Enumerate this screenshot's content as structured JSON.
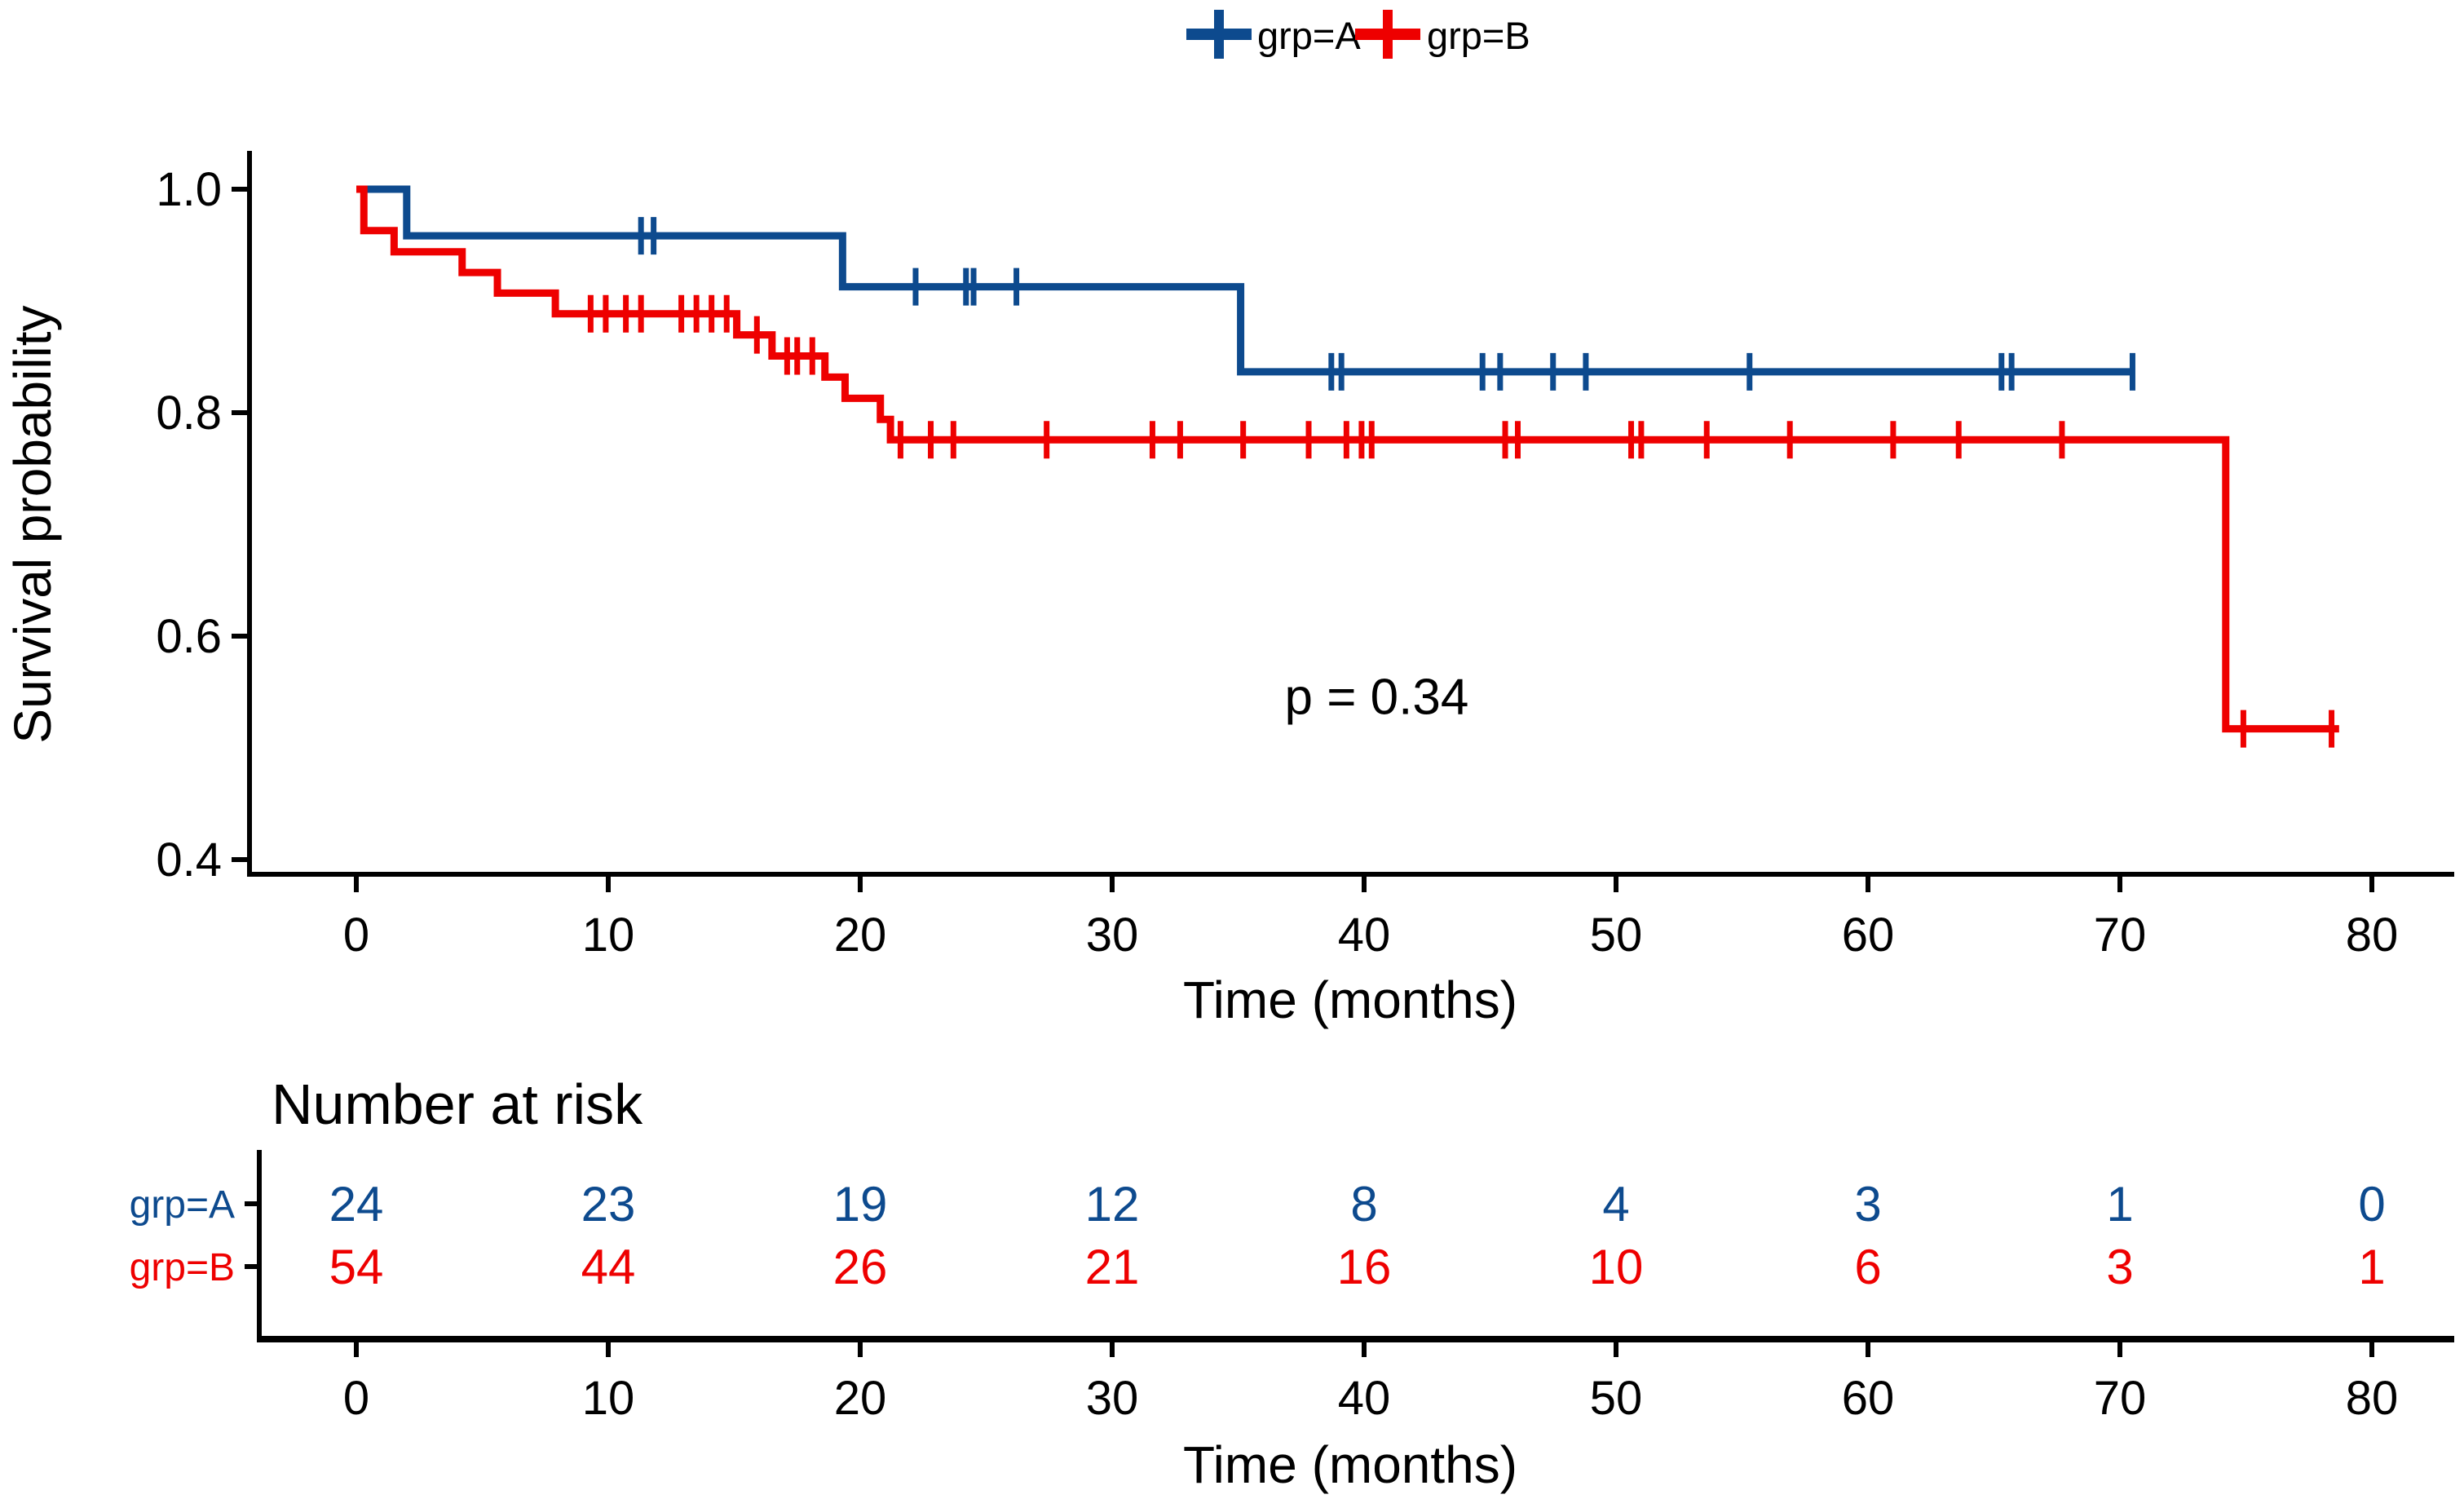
{
  "chart_data": {
    "type": "km_survival",
    "title": "",
    "legend": [
      {
        "label": "grp=A",
        "color": "#0d4a8e"
      },
      {
        "label": "grp=B",
        "color": "#ee0000"
      }
    ],
    "xlabel": "Time (months)",
    "ylabel": "Survival probability",
    "xlim": [
      0,
      80
    ],
    "ylim": [
      0.4,
      1.0
    ],
    "x_ticks": [
      0,
      10,
      20,
      30,
      40,
      50,
      60,
      70,
      80
    ],
    "y_ticks": [
      {
        "value": 1.0,
        "label": "1.0"
      },
      {
        "value": 0.8,
        "label": "0.8"
      },
      {
        "value": 0.6,
        "label": "0.6"
      },
      {
        "value": 0.4,
        "label": "0.4"
      }
    ],
    "grid": false,
    "legend_position": "top",
    "pvalue": {
      "text": "p = 0.34",
      "t": 40.5,
      "s": 0.545
    },
    "series": [
      {
        "name": "grp=A",
        "color": "#0d4a8e",
        "steps": [
          [
            0,
            1.0
          ],
          [
            2.0,
            0.9583
          ],
          [
            19.3,
            0.9127
          ],
          [
            35.1,
            0.8366
          ]
        ],
        "end_time": 70.5,
        "censors": [
          11.3,
          11.8,
          22.2,
          24.2,
          24.5,
          26.2,
          38.7,
          39.1,
          44.7,
          45.4,
          47.5,
          48.8,
          55.3,
          65.3,
          65.7,
          70.5
        ]
      },
      {
        "name": "grp=B",
        "color": "#ee0000",
        "steps": [
          [
            0,
            1.0
          ],
          [
            0.3,
            0.963
          ],
          [
            1.5,
            0.944
          ],
          [
            4.2,
            0.9255
          ],
          [
            5.6,
            0.907
          ],
          [
            7.9,
            0.8885
          ],
          [
            15.1,
            0.8696
          ],
          [
            16.5,
            0.8507
          ],
          [
            18.6,
            0.8318
          ],
          [
            19.4,
            0.8129
          ],
          [
            20.8,
            0.794
          ],
          [
            21.2,
            0.7757
          ],
          [
            74.2,
            0.5171
          ]
        ],
        "end_time": 78.7,
        "censors": [
          9.3,
          9.9,
          10.7,
          11.3,
          12.9,
          13.5,
          14.1,
          14.7,
          15.9,
          17.1,
          17.5,
          18.1,
          21.6,
          22.8,
          23.7,
          27.4,
          31.6,
          32.7,
          35.2,
          37.8,
          39.3,
          39.9,
          40.3,
          45.6,
          46.1,
          50.6,
          51.0,
          53.6,
          56.9,
          61.0,
          63.6,
          67.7,
          74.9,
          78.4
        ]
      }
    ],
    "risk_table": {
      "title": "Number at risk",
      "xlabel": "Time (months)",
      "times": [
        0,
        10,
        20,
        30,
        40,
        50,
        60,
        70,
        80
      ],
      "rows": [
        {
          "name": "grp=A",
          "color": "#0d4a8e",
          "values": [
            24,
            23,
            19,
            12,
            8,
            4,
            3,
            1,
            0
          ]
        },
        {
          "name": "grp=B",
          "color": "#ee0000",
          "values": [
            54,
            44,
            26,
            21,
            16,
            10,
            6,
            3,
            1
          ]
        }
      ]
    }
  }
}
